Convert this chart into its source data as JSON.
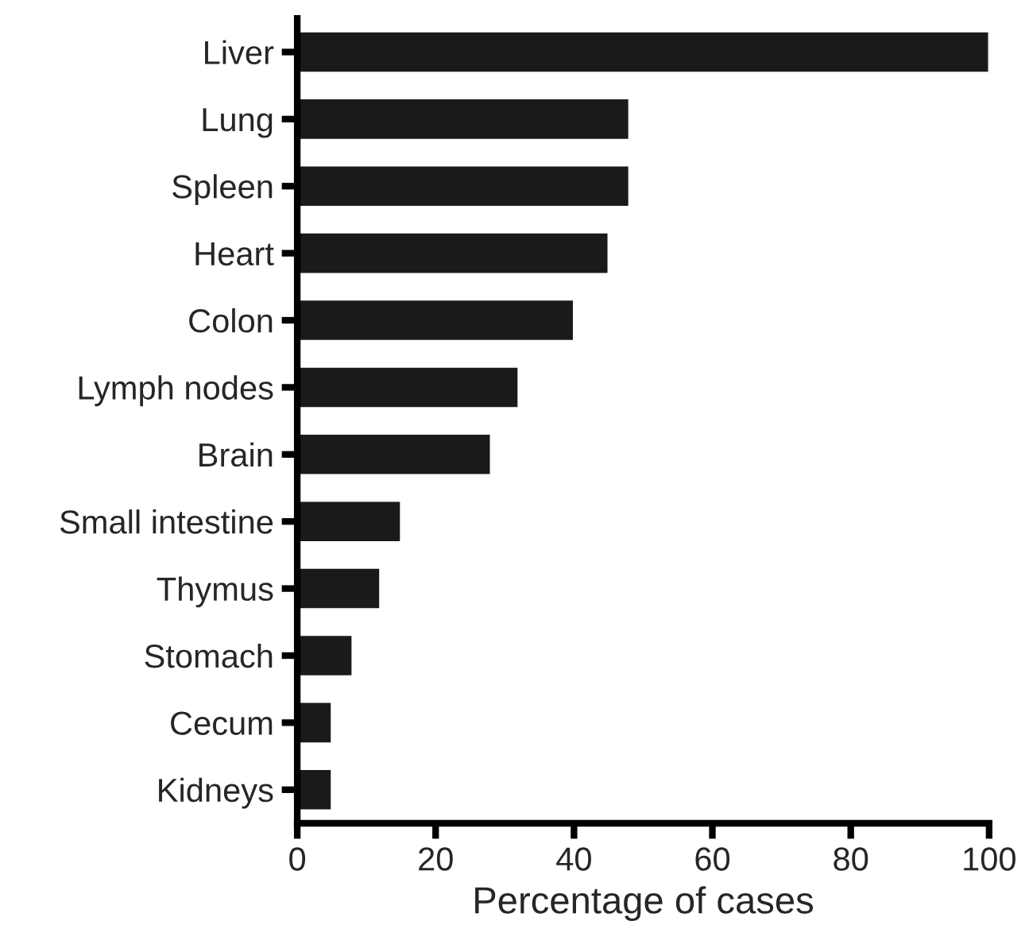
{
  "chart_data": {
    "type": "bar",
    "orientation": "horizontal",
    "xlabel": "Percentage of cases",
    "categories": [
      "Liver",
      "Lung",
      "Spleen",
      "Heart",
      "Colon",
      "Lymph nodes",
      "Brain",
      "Small intestine",
      "Thymus",
      "Stomach",
      "Cecum",
      "Kidneys"
    ],
    "values": [
      100,
      48,
      48,
      45,
      40,
      32,
      28,
      15,
      12,
      8,
      5,
      5
    ],
    "color": "#1a1a1a",
    "xlim": [
      0,
      100
    ],
    "xticks": [
      0,
      20,
      40,
      60,
      80,
      100
    ],
    "grid": false
  }
}
